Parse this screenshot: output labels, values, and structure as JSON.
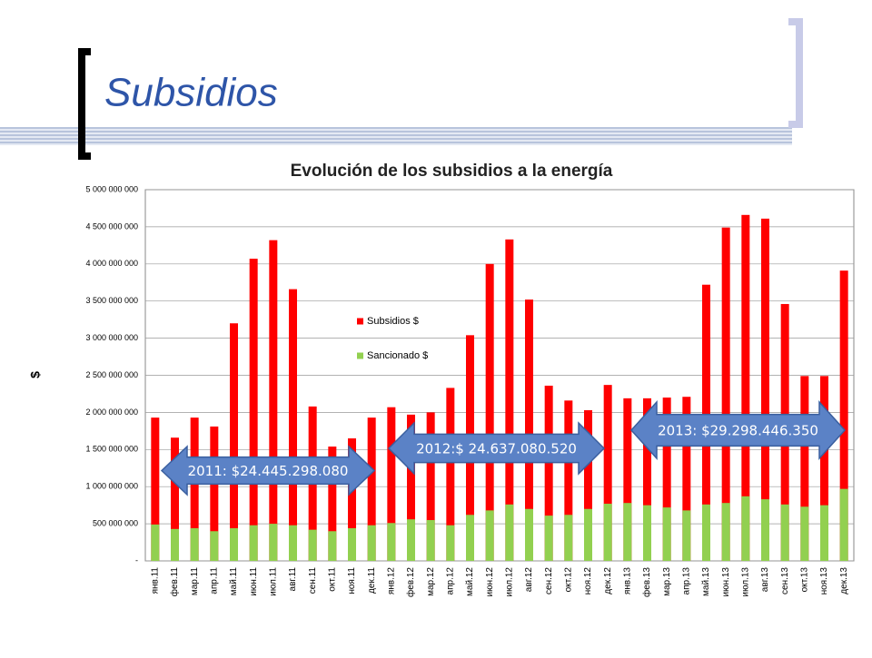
{
  "slide": {
    "title": "Subsidios"
  },
  "chart_data": {
    "type": "bar",
    "title": "Evolución de los subsidios a la energía",
    "y_label": "$",
    "categories": [
      "янв.11",
      "фев.11",
      "мар.11",
      "апр.11",
      "май.11",
      "июн.11",
      "июл.11",
      "авг.11",
      "сен.11",
      "окт.11",
      "ноя.11",
      "дек.11",
      "янв.12",
      "фев.12",
      "мар.12",
      "апр.12",
      "май.12",
      "июн.12",
      "июл.12",
      "авг.12",
      "сен.12",
      "окт.12",
      "ноя.12",
      "дек.12",
      "янв.13",
      "фев.13",
      "мар.13",
      "апр.13",
      "май.13",
      "июн.13",
      "июл.13",
      "авг.13",
      "сен.13",
      "окт.13",
      "ноя.13",
      "дек.13"
    ],
    "series": [
      {
        "name": "Subsidios $",
        "color": "#ff0000",
        "values": [
          1930000000,
          1660000000,
          1930000000,
          1810000000,
          3200000000,
          4070000000,
          4320000000,
          3660000000,
          2080000000,
          1540000000,
          1650000000,
          1930000000,
          2070000000,
          1970000000,
          2000000000,
          2330000000,
          3040000000,
          4000000000,
          4330000000,
          3520000000,
          2360000000,
          2160000000,
          2030000000,
          2370000000,
          2190000000,
          2190000000,
          2200000000,
          2210000000,
          3720000000,
          4490000000,
          4660000000,
          4610000000,
          3460000000,
          2490000000,
          2490000000,
          3910000000
        ]
      },
      {
        "name": "Sancionado $",
        "color": "#92d050",
        "values": [
          490000000,
          430000000,
          440000000,
          400000000,
          440000000,
          480000000,
          500000000,
          480000000,
          420000000,
          400000000,
          440000000,
          480000000,
          510000000,
          560000000,
          550000000,
          480000000,
          620000000,
          680000000,
          760000000,
          700000000,
          610000000,
          620000000,
          700000000,
          770000000,
          780000000,
          750000000,
          720000000,
          680000000,
          760000000,
          780000000,
          870000000,
          830000000,
          760000000,
          730000000,
          750000000,
          970000000
        ]
      }
    ],
    "ylim": [
      0,
      5000000000
    ],
    "yticks": [
      {
        "value": 0,
        "label": "-"
      },
      {
        "value": 500000000,
        "label": "500 000 000"
      },
      {
        "value": 1000000000,
        "label": "1 000 000 000"
      },
      {
        "value": 1500000000,
        "label": "1 500 000 000"
      },
      {
        "value": 2000000000,
        "label": "2 000 000 000"
      },
      {
        "value": 2500000000,
        "label": "2 500 000 000"
      },
      {
        "value": 3000000000,
        "label": "3 000 000 000"
      },
      {
        "value": 3500000000,
        "label": "3 500 000 000"
      },
      {
        "value": 4000000000,
        "label": "4 000 000 000"
      },
      {
        "value": 4500000000,
        "label": "4 500 000 000"
      },
      {
        "value": 5000000000,
        "label": "5 000 000 000"
      }
    ],
    "grid": true,
    "legend": "center",
    "annotations": [
      "2011: $24.445.298.080",
      "2012:$ 24.637.080.520",
      "2013: $29.298.446.350"
    ]
  }
}
